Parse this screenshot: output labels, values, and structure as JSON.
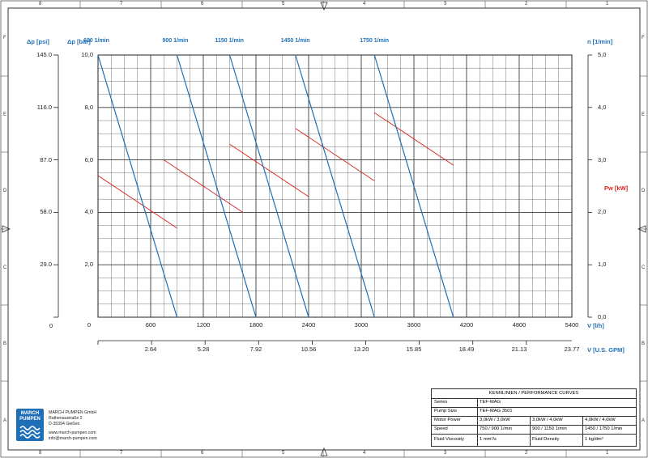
{
  "frame": {
    "top_numbers": [
      "8",
      "7",
      "6",
      "5",
      "4",
      "3",
      "2",
      "1"
    ],
    "side_letters": [
      "F",
      "E",
      "D",
      "C",
      "B",
      "A"
    ]
  },
  "axes": {
    "dp_psi_label": "Δp [psi]",
    "dp_bar_label": "Δp [bar]",
    "n_label": "n [1/min]",
    "pw_label": "Pw [kW]",
    "v_lh_label": "V [l/h]",
    "v_gpm_label": "V [U.S. GPM]",
    "zero_label": "0",
    "psi_ticks": [
      "145.0",
      "116.0",
      "87.0",
      "58.0",
      "29.0"
    ],
    "bar_ticks": [
      "10,0",
      "8,0",
      "6,0",
      "4,0",
      "2,0"
    ],
    "n_ticks": [
      "5,0",
      "4,0",
      "3,0",
      "2,0",
      "1,0",
      "0,0"
    ],
    "lh_ticks": [
      "0",
      "600",
      "1200",
      "1800",
      "2400",
      "3000",
      "3600",
      "4200",
      "4800",
      "5400"
    ],
    "gpm_ticks": [
      "2.64",
      "5.28",
      "7.92",
      "10.56",
      "13.20",
      "15.85",
      "18.49",
      "21.13",
      "23.77"
    ]
  },
  "chart_data": {
    "type": "line",
    "title": "KENNLINIEN / PERFORMANCE CURVES",
    "xlabel": "V [l/h]",
    "ylabel": "Δp [bar]",
    "y2label": "Pw [kW]",
    "xlim": [
      0,
      5400
    ],
    "ylim": [
      0,
      10
    ],
    "y2lim": [
      0,
      5
    ],
    "grid": true,
    "head_curves": [
      {
        "name": "600 1/min",
        "x": [
          0,
          900
        ],
        "y": [
          10.0,
          0.0
        ]
      },
      {
        "name": "900 1/min",
        "x": [
          900,
          1800
        ],
        "y": [
          10.0,
          0.0
        ]
      },
      {
        "name": "1150 1/min",
        "x": [
          1500,
          2400
        ],
        "y": [
          10.0,
          0.0
        ]
      },
      {
        "name": "1450 1/min",
        "x": [
          2250,
          3150
        ],
        "y": [
          10.0,
          0.0
        ]
      },
      {
        "name": "1750 1/min",
        "x": [
          3150,
          4050
        ],
        "y": [
          10.0,
          0.0
        ]
      }
    ],
    "power_curves": [
      {
        "name": "600 1/min",
        "x": [
          0,
          900
        ],
        "y": [
          2.7,
          1.7
        ]
      },
      {
        "name": "900 1/min",
        "x": [
          750,
          1650
        ],
        "y": [
          3.0,
          2.0
        ]
      },
      {
        "name": "1150 1/min",
        "x": [
          1500,
          2400
        ],
        "y": [
          3.3,
          2.3
        ]
      },
      {
        "name": "1450 1/min",
        "x": [
          2250,
          3150
        ],
        "y": [
          3.6,
          2.6
        ]
      },
      {
        "name": "1750 1/min",
        "x": [
          3150,
          4050
        ],
        "y": [
          3.9,
          2.9
        ]
      }
    ]
  },
  "company": {
    "logo_line1": "MARCH",
    "logo_line2": "PUMPEN",
    "name": "MARCH PUMPEN GmbH",
    "street": "Rathenaustraße 2",
    "city": "D-35394 Gießen",
    "web": "www.march-pumpen.com",
    "email": "info@march-pumpen.com"
  },
  "title_block": {
    "heading": "KENNLINIEN / PERFORMANCE CURVES",
    "series_label": "Series",
    "series_value": "TEF-MAG",
    "size_label": "Pump Size",
    "size_value": "TEF-MAG 3501",
    "motor_label": "Motor Power",
    "motor_values": [
      "3,0kW / 3,0kW",
      "3,0kW / 4,0kW",
      "4,0kW / 4,0kW"
    ],
    "speed_label": "Speed",
    "speed_values": [
      "750 / 900 1/min",
      "900 / 1150 1/min",
      "1450 / 1750 1/min"
    ],
    "visc_label": "Fluid Viscosity",
    "visc_value": "1 mm²/s",
    "density_label": "Fluid Density",
    "density_value": "1 kg/dm³"
  },
  "colors": {
    "head": "#1f6fb8",
    "power": "#d9221b",
    "grid": "#3a3a3a"
  }
}
